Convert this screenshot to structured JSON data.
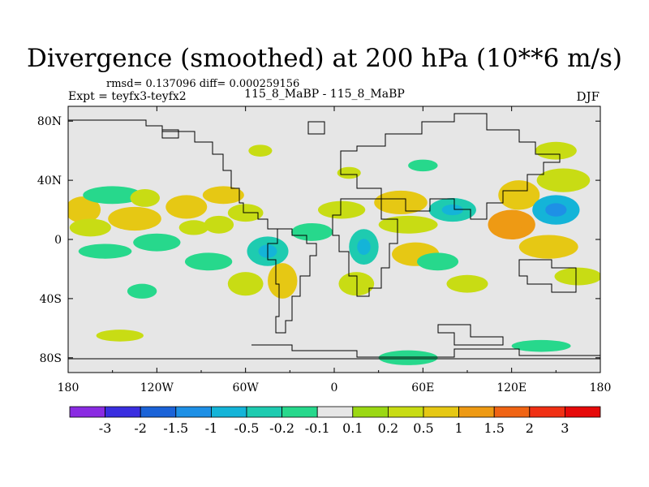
{
  "title": "Divergence (smoothed) at 200 hPa (10**6 m/s)",
  "stats": "rmsd= 0.137096 diff= 0.000259156",
  "experiment": "Expt = teyfx3-teyfx2",
  "runs": "115_8_MaBP - 115_8_MaBP",
  "season": "DJF",
  "axes": {
    "lon_ticks": [
      "180",
      "120W",
      "60W",
      "0",
      "60E",
      "120E",
      "180"
    ],
    "lat_ticks": [
      "80N",
      "40N",
      "0",
      "40S",
      "80S"
    ],
    "lon_range": [
      -180,
      180
    ],
    "lat_range": [
      -90,
      90
    ]
  },
  "colorbar": {
    "labels": [
      "-3",
      "-2",
      "-1.5",
      "-1",
      "-0.5",
      "-0.2",
      "-0.1",
      "0.1",
      "0.2",
      "0.5",
      "1",
      "1.5",
      "2",
      "3"
    ],
    "colors": [
      "#8a2be2",
      "#3a2ee0",
      "#1b63d8",
      "#1e90e6",
      "#14b4d8",
      "#1ecbb0",
      "#27d88c",
      "#e6e6e6",
      "#9bd814",
      "#c8dc14",
      "#e6c814",
      "#ee9a14",
      "#f06414",
      "#f03014",
      "#e60a0a"
    ]
  },
  "chart_data": {
    "type": "heatmap",
    "title": "Divergence (smoothed) at 200 hPa (10**6 m/s)",
    "variable": "200 hPa divergence difference",
    "units": "10**6 m/s",
    "season": "DJF",
    "x_range": [
      -180,
      180
    ],
    "y_range": [
      -90,
      90
    ],
    "levels": [
      -3,
      -2,
      -1.5,
      -1,
      -0.5,
      -0.2,
      -0.1,
      0.1,
      0.2,
      0.5,
      1,
      1.5,
      2,
      3
    ],
    "blobs": [
      {
        "lon": -170,
        "lat": 20,
        "rx": 12,
        "ry": 9,
        "level": 0.5
      },
      {
        "lon": -165,
        "lat": 8,
        "rx": 14,
        "ry": 6,
        "level": 0.2
      },
      {
        "lon": -150,
        "lat": 30,
        "rx": 20,
        "ry": 6,
        "level": -0.2
      },
      {
        "lon": -135,
        "lat": 14,
        "rx": 18,
        "ry": 8,
        "level": 0.5
      },
      {
        "lon": -128,
        "lat": 28,
        "rx": 10,
        "ry": 6,
        "level": 0.2
      },
      {
        "lon": -120,
        "lat": -2,
        "rx": 16,
        "ry": 6,
        "level": -0.2
      },
      {
        "lon": -155,
        "lat": -8,
        "rx": 18,
        "ry": 5,
        "level": -0.2
      },
      {
        "lon": -100,
        "lat": 22,
        "rx": 14,
        "ry": 8,
        "level": 0.5
      },
      {
        "lon": -95,
        "lat": 8,
        "rx": 10,
        "ry": 5,
        "level": 0.2
      },
      {
        "lon": -75,
        "lat": 30,
        "rx": 14,
        "ry": 6,
        "level": 0.5
      },
      {
        "lon": -78,
        "lat": 10,
        "rx": 10,
        "ry": 6,
        "level": 0.2
      },
      {
        "lon": -85,
        "lat": -15,
        "rx": 16,
        "ry": 6,
        "level": -0.2
      },
      {
        "lon": -60,
        "lat": 18,
        "rx": 12,
        "ry": 6,
        "level": 0.2
      },
      {
        "lon": -45,
        "lat": -8,
        "rx": 14,
        "ry": 10,
        "level": -0.5
      },
      {
        "lon": -35,
        "lat": -28,
        "rx": 10,
        "ry": 12,
        "level": 0.5
      },
      {
        "lon": -60,
        "lat": -30,
        "rx": 12,
        "ry": 8,
        "level": 0.2
      },
      {
        "lon": -15,
        "lat": 5,
        "rx": 14,
        "ry": 6,
        "level": -0.2
      },
      {
        "lon": 5,
        "lat": 20,
        "rx": 16,
        "ry": 6,
        "level": 0.2
      },
      {
        "lon": 20,
        "lat": -5,
        "rx": 10,
        "ry": 12,
        "level": -0.5
      },
      {
        "lon": 15,
        "lat": -30,
        "rx": 12,
        "ry": 8,
        "level": 0.2
      },
      {
        "lon": 45,
        "lat": 25,
        "rx": 18,
        "ry": 8,
        "level": 0.5
      },
      {
        "lon": 50,
        "lat": 10,
        "rx": 20,
        "ry": 6,
        "level": 0.2
      },
      {
        "lon": 55,
        "lat": -10,
        "rx": 16,
        "ry": 8,
        "level": 0.5
      },
      {
        "lon": 70,
        "lat": -15,
        "rx": 14,
        "ry": 6,
        "level": -0.2
      },
      {
        "lon": 80,
        "lat": 20,
        "rx": 16,
        "ry": 8,
        "level": -0.5
      },
      {
        "lon": 90,
        "lat": -30,
        "rx": 14,
        "ry": 6,
        "level": 0.2
      },
      {
        "lon": 120,
        "lat": 10,
        "rx": 16,
        "ry": 10,
        "level": 1
      },
      {
        "lon": 125,
        "lat": 30,
        "rx": 14,
        "ry": 10,
        "level": 0.5
      },
      {
        "lon": 150,
        "lat": 20,
        "rx": 16,
        "ry": 10,
        "level": -1
      },
      {
        "lon": 155,
        "lat": 40,
        "rx": 18,
        "ry": 8,
        "level": 0.2
      },
      {
        "lon": 145,
        "lat": -5,
        "rx": 20,
        "ry": 8,
        "level": 0.5
      },
      {
        "lon": 165,
        "lat": -25,
        "rx": 16,
        "ry": 6,
        "level": 0.2
      },
      {
        "lon": 50,
        "lat": -80,
        "rx": 20,
        "ry": 5,
        "level": -0.2
      },
      {
        "lon": 140,
        "lat": -72,
        "rx": 20,
        "ry": 4,
        "level": -0.2
      },
      {
        "lon": -145,
        "lat": -65,
        "rx": 16,
        "ry": 4,
        "level": 0.2
      },
      {
        "lon": -130,
        "lat": -35,
        "rx": 10,
        "ry": 5,
        "level": -0.2
      },
      {
        "lon": 10,
        "lat": 45,
        "rx": 8,
        "ry": 4,
        "level": 0.2
      },
      {
        "lon": 60,
        "lat": 50,
        "rx": 10,
        "ry": 4,
        "level": -0.2
      },
      {
        "lon": 150,
        "lat": 60,
        "rx": 14,
        "ry": 6,
        "level": 0.2
      },
      {
        "lon": -50,
        "lat": 60,
        "rx": 8,
        "ry": 4,
        "level": 0.2
      }
    ]
  }
}
